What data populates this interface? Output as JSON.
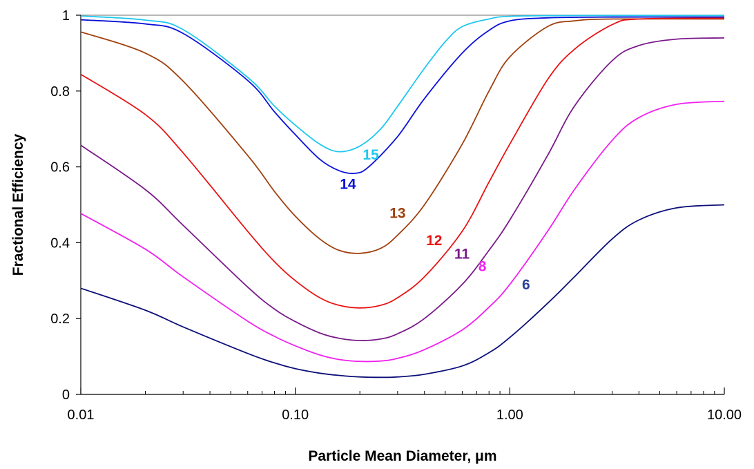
{
  "chart_data": {
    "type": "line",
    "xlabel": "Particle Mean Diameter, μm",
    "ylabel": "Fractional Efficiency",
    "x_scale": "log",
    "xlim": [
      0.01,
      10
    ],
    "ylim": [
      0,
      1
    ],
    "x_ticks": [
      0.01,
      0.1,
      1,
      10
    ],
    "x_tick_labels": [
      "0.01",
      "0.10",
      "1.00",
      "10.00"
    ],
    "y_ticks": [
      0,
      0.2,
      0.4,
      0.6,
      0.8,
      1
    ],
    "y_tick_labels": [
      "0",
      "0.2",
      "0.4",
      "0.6",
      "0.8",
      "1"
    ],
    "grid": false,
    "series": [
      {
        "name": "15",
        "color": "#1fc8f0",
        "points": [
          [
            0.01,
            0.998
          ],
          [
            0.02,
            0.987
          ],
          [
            0.03,
            0.962
          ],
          [
            0.06,
            0.836
          ],
          [
            0.08,
            0.76
          ],
          [
            0.1,
            0.71
          ],
          [
            0.13,
            0.66
          ],
          [
            0.16,
            0.64
          ],
          [
            0.2,
            0.655
          ],
          [
            0.25,
            0.7
          ],
          [
            0.3,
            0.76
          ],
          [
            0.4,
            0.86
          ],
          [
            0.5,
            0.93
          ],
          [
            0.6,
            0.97
          ],
          [
            0.8,
            0.99
          ],
          [
            1,
            0.997
          ],
          [
            2,
            0.999
          ],
          [
            10,
            0.999
          ]
        ]
      },
      {
        "name": "14",
        "color": "#0a10d8",
        "points": [
          [
            0.01,
            0.988
          ],
          [
            0.02,
            0.977
          ],
          [
            0.03,
            0.952
          ],
          [
            0.06,
            0.828
          ],
          [
            0.08,
            0.745
          ],
          [
            0.1,
            0.685
          ],
          [
            0.13,
            0.62
          ],
          [
            0.16,
            0.59
          ],
          [
            0.19,
            0.583
          ],
          [
            0.22,
            0.6
          ],
          [
            0.3,
            0.68
          ],
          [
            0.4,
            0.78
          ],
          [
            0.6,
            0.9
          ],
          [
            0.8,
            0.96
          ],
          [
            1,
            0.985
          ],
          [
            1.5,
            0.993
          ],
          [
            3,
            0.995
          ],
          [
            10,
            0.995
          ]
        ]
      },
      {
        "name": "13",
        "color": "#a0400e",
        "points": [
          [
            0.01,
            0.956
          ],
          [
            0.02,
            0.9
          ],
          [
            0.03,
            0.826
          ],
          [
            0.06,
            0.63
          ],
          [
            0.08,
            0.535
          ],
          [
            0.1,
            0.47
          ],
          [
            0.13,
            0.41
          ],
          [
            0.16,
            0.38
          ],
          [
            0.2,
            0.372
          ],
          [
            0.25,
            0.385
          ],
          [
            0.3,
            0.42
          ],
          [
            0.4,
            0.5
          ],
          [
            0.6,
            0.66
          ],
          [
            0.8,
            0.8
          ],
          [
            1,
            0.89
          ],
          [
            1.5,
            0.97
          ],
          [
            2,
            0.985
          ],
          [
            3,
            0.99
          ],
          [
            10,
            0.99
          ]
        ]
      },
      {
        "name": "12",
        "color": "#e81414",
        "points": [
          [
            0.01,
            0.844
          ],
          [
            0.02,
            0.738
          ],
          [
            0.03,
            0.637
          ],
          [
            0.06,
            0.43
          ],
          [
            0.08,
            0.35
          ],
          [
            0.1,
            0.3
          ],
          [
            0.13,
            0.255
          ],
          [
            0.16,
            0.235
          ],
          [
            0.2,
            0.228
          ],
          [
            0.25,
            0.235
          ],
          [
            0.3,
            0.255
          ],
          [
            0.4,
            0.31
          ],
          [
            0.6,
            0.43
          ],
          [
            0.8,
            0.56
          ],
          [
            1,
            0.66
          ],
          [
            1.5,
            0.83
          ],
          [
            2,
            0.91
          ],
          [
            3,
            0.975
          ],
          [
            4,
            0.99
          ],
          [
            10,
            0.992
          ]
        ]
      },
      {
        "name": "11",
        "color": "#7a1a8a",
        "points": [
          [
            0.01,
            0.657
          ],
          [
            0.02,
            0.54
          ],
          [
            0.03,
            0.446
          ],
          [
            0.06,
            0.283
          ],
          [
            0.08,
            0.225
          ],
          [
            0.1,
            0.192
          ],
          [
            0.13,
            0.162
          ],
          [
            0.16,
            0.148
          ],
          [
            0.2,
            0.142
          ],
          [
            0.25,
            0.146
          ],
          [
            0.3,
            0.16
          ],
          [
            0.4,
            0.2
          ],
          [
            0.6,
            0.29
          ],
          [
            0.8,
            0.38
          ],
          [
            1,
            0.46
          ],
          [
            1.5,
            0.63
          ],
          [
            2,
            0.76
          ],
          [
            3,
            0.88
          ],
          [
            4,
            0.92
          ],
          [
            6,
            0.937
          ],
          [
            10,
            0.94
          ]
        ]
      },
      {
        "name": "8",
        "color": "#f020f0",
        "points": [
          [
            0.01,
            0.477
          ],
          [
            0.02,
            0.383
          ],
          [
            0.03,
            0.31
          ],
          [
            0.06,
            0.193
          ],
          [
            0.08,
            0.153
          ],
          [
            0.1,
            0.128
          ],
          [
            0.13,
            0.104
          ],
          [
            0.16,
            0.092
          ],
          [
            0.2,
            0.087
          ],
          [
            0.25,
            0.088
          ],
          [
            0.3,
            0.095
          ],
          [
            0.4,
            0.118
          ],
          [
            0.6,
            0.17
          ],
          [
            0.8,
            0.23
          ],
          [
            1,
            0.29
          ],
          [
            1.5,
            0.43
          ],
          [
            2,
            0.54
          ],
          [
            3,
            0.67
          ],
          [
            4,
            0.73
          ],
          [
            6,
            0.765
          ],
          [
            10,
            0.773
          ]
        ]
      },
      {
        "name": "6",
        "color": "#0c0f78",
        "points": [
          [
            0.01,
            0.28
          ],
          [
            0.02,
            0.222
          ],
          [
            0.03,
            0.178
          ],
          [
            0.06,
            0.108
          ],
          [
            0.08,
            0.083
          ],
          [
            0.1,
            0.068
          ],
          [
            0.13,
            0.056
          ],
          [
            0.16,
            0.05
          ],
          [
            0.2,
            0.046
          ],
          [
            0.25,
            0.045
          ],
          [
            0.3,
            0.046
          ],
          [
            0.4,
            0.053
          ],
          [
            0.6,
            0.075
          ],
          [
            0.8,
            0.11
          ],
          [
            1,
            0.15
          ],
          [
            1.5,
            0.24
          ],
          [
            2,
            0.31
          ],
          [
            3,
            0.41
          ],
          [
            4,
            0.46
          ],
          [
            6,
            0.492
          ],
          [
            10,
            0.5
          ]
        ]
      }
    ],
    "labels": [
      {
        "text": "15",
        "x": 0.225,
        "y": 0.619,
        "color": "#1fc8f0"
      },
      {
        "text": "14",
        "x": 0.176,
        "y": 0.542,
        "color": "#0a10d8"
      },
      {
        "text": "13",
        "x": 0.3,
        "y": 0.465,
        "color": "#a0400e"
      },
      {
        "text": "12",
        "x": 0.444,
        "y": 0.393,
        "color": "#e81414"
      },
      {
        "text": "11",
        "x": 0.598,
        "y": 0.358,
        "color": "#7a1a8a"
      },
      {
        "text": "8",
        "x": 0.745,
        "y": 0.325,
        "color": "#f020f0"
      },
      {
        "text": "6",
        "x": 1.19,
        "y": 0.277,
        "color": "#2b3f96"
      }
    ]
  }
}
